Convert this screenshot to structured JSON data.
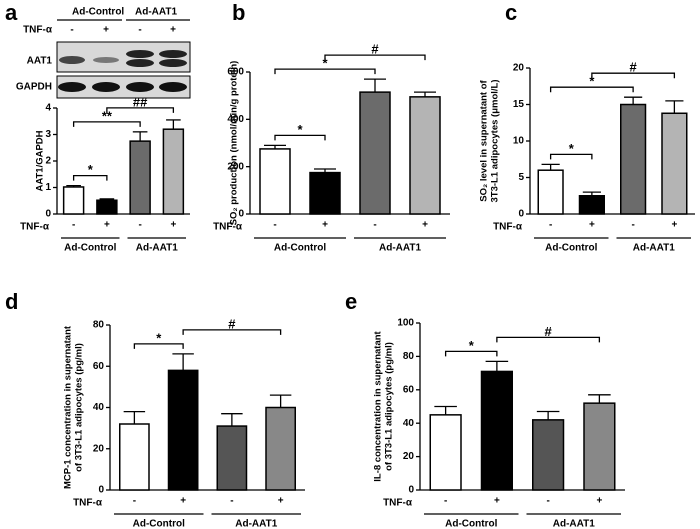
{
  "chart_data": [
    {
      "type": "bar",
      "panel": "a",
      "blot": {
        "rows": [
          "AAT1",
          "GAPDH"
        ]
      },
      "ylabel": [
        "AAT1/GAPDH"
      ],
      "categories": [
        "-",
        "+",
        "-",
        "+"
      ],
      "row_label": "TNF-α",
      "groups": [
        "Ad-Control",
        "Ad-AAT1"
      ],
      "values": [
        1.02,
        0.52,
        2.75,
        3.2
      ],
      "errors": [
        0.05,
        0.05,
        0.35,
        0.35
      ],
      "colors": [
        "#ffffff",
        "#000000",
        "#6b6b6b",
        "#b4b4b4"
      ],
      "ylim": [
        0,
        4
      ],
      "yticks": [
        0,
        1,
        2,
        3,
        4
      ],
      "annotations": [
        {
          "text": "*",
          "between": [
            0,
            1
          ]
        },
        {
          "text": "**",
          "between": [
            0,
            2
          ]
        },
        {
          "text": "##",
          "between": [
            1,
            3
          ]
        }
      ]
    },
    {
      "type": "bar",
      "panel": "b",
      "ylabel": [
        "SO₂ production (nmol/min/g protein)"
      ],
      "categories": [
        "-",
        "+",
        "-",
        "+"
      ],
      "row_label": "TNF-α",
      "groups": [
        "Ad-Control",
        "Ad-AAT1"
      ],
      "values": [
        275,
        175,
        515,
        495
      ],
      "errors": [
        15,
        15,
        55,
        20
      ],
      "colors": [
        "#ffffff",
        "#000000",
        "#6b6b6b",
        "#b4b4b4"
      ],
      "ylim": [
        0,
        600
      ],
      "yticks": [
        0,
        200,
        400,
        600
      ],
      "annotations": [
        {
          "text": "*",
          "between": [
            0,
            1
          ]
        },
        {
          "text": "*",
          "between": [
            0,
            2
          ]
        },
        {
          "text": "#",
          "between": [
            1,
            3
          ]
        }
      ]
    },
    {
      "type": "bar",
      "panel": "c",
      "ylabel": [
        "SO₂ level in supernatant of",
        "3T3-L1 adipocytes (μmol/L)"
      ],
      "categories": [
        "-",
        "+",
        "-",
        "+"
      ],
      "row_label": "TNF-α",
      "groups": [
        "Ad-Control",
        "Ad-AAT1"
      ],
      "values": [
        6,
        2.5,
        15,
        13.8
      ],
      "errors": [
        0.8,
        0.5,
        1,
        1.7
      ],
      "colors": [
        "#ffffff",
        "#000000",
        "#6b6b6b",
        "#b4b4b4"
      ],
      "ylim": [
        0,
        20
      ],
      "yticks": [
        0,
        5,
        10,
        15,
        20
      ],
      "annotations": [
        {
          "text": "*",
          "between": [
            0,
            1
          ]
        },
        {
          "text": "*",
          "between": [
            0,
            2
          ]
        },
        {
          "text": "#",
          "between": [
            1,
            3
          ]
        }
      ]
    },
    {
      "type": "bar",
      "panel": "d",
      "ylabel": [
        "MCP-1 concentration in supernatant",
        "of 3T3-L1 adipocytes (pg/ml)"
      ],
      "categories": [
        "-",
        "+",
        "-",
        "+"
      ],
      "row_label": "TNF-α",
      "groups": [
        "Ad-Control",
        "Ad-AAT1"
      ],
      "values": [
        32,
        58,
        31,
        40
      ],
      "errors": [
        6,
        8,
        6,
        6
      ],
      "colors": [
        "#ffffff",
        "#000000",
        "#555555",
        "#888888"
      ],
      "ylim": [
        0,
        80
      ],
      "yticks": [
        0,
        20,
        40,
        60,
        80
      ],
      "annotations": [
        {
          "text": "*",
          "between": [
            0,
            1
          ]
        },
        {
          "text": "#",
          "between": [
            1,
            3
          ]
        }
      ]
    },
    {
      "type": "bar",
      "panel": "e",
      "ylabel": [
        "IL-8 concentration in supernatant",
        "of 3T3-L1 adipocytes (pg/ml)"
      ],
      "categories": [
        "-",
        "+",
        "-",
        "+"
      ],
      "row_label": "TNF-α",
      "groups": [
        "Ad-Control",
        "Ad-AAT1"
      ],
      "values": [
        45,
        71,
        42,
        52
      ],
      "errors": [
        5,
        6,
        5,
        5
      ],
      "colors": [
        "#ffffff",
        "#000000",
        "#555555",
        "#888888"
      ],
      "ylim": [
        0,
        100
      ],
      "yticks": [
        0,
        20,
        40,
        60,
        80,
        100
      ],
      "annotations": [
        {
          "text": "*",
          "between": [
            0,
            1
          ]
        },
        {
          "text": "#",
          "between": [
            1,
            3
          ]
        }
      ]
    }
  ]
}
